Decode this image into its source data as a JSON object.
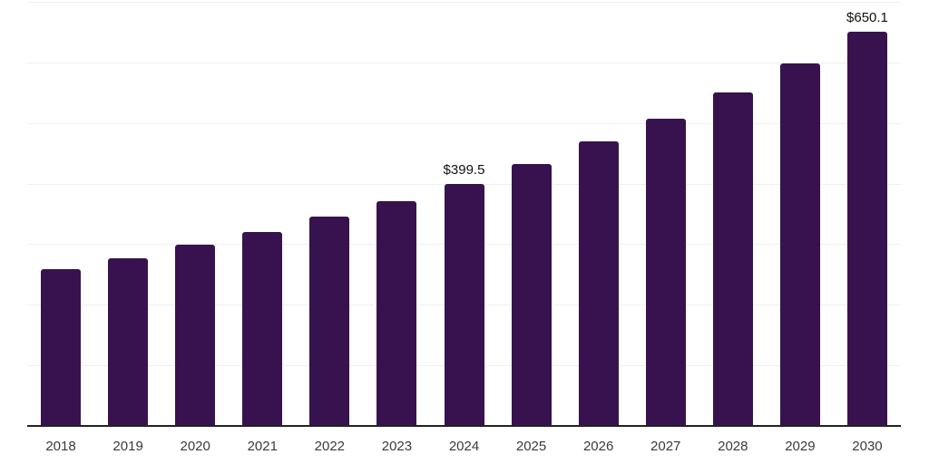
{
  "chart_data": {
    "type": "bar",
    "title": "",
    "xlabel": "",
    "ylabel": "",
    "categories": [
      "2018",
      "2019",
      "2020",
      "2021",
      "2022",
      "2023",
      "2024",
      "2025",
      "2026",
      "2027",
      "2028",
      "2029",
      "2030"
    ],
    "values": [
      259,
      277,
      299,
      320,
      346,
      371,
      399.5,
      433,
      469,
      507,
      550,
      598,
      650.1
    ],
    "value_labels": [
      "",
      "",
      "",
      "",
      "",
      "",
      "$399.5",
      "",
      "",
      "",
      "",
      "",
      "$650.1"
    ],
    "ylim": [
      0,
      700
    ],
    "gridline_interval": 100,
    "grid": true,
    "y_axis_labels_visible": false,
    "legend_position": "none",
    "colors": {
      "bar": "#38124E",
      "gridline": "#efefef",
      "axis_line": "#222222",
      "tick_label": "#3a3a3a",
      "value_label": "#111111",
      "background": "#ffffff"
    }
  }
}
